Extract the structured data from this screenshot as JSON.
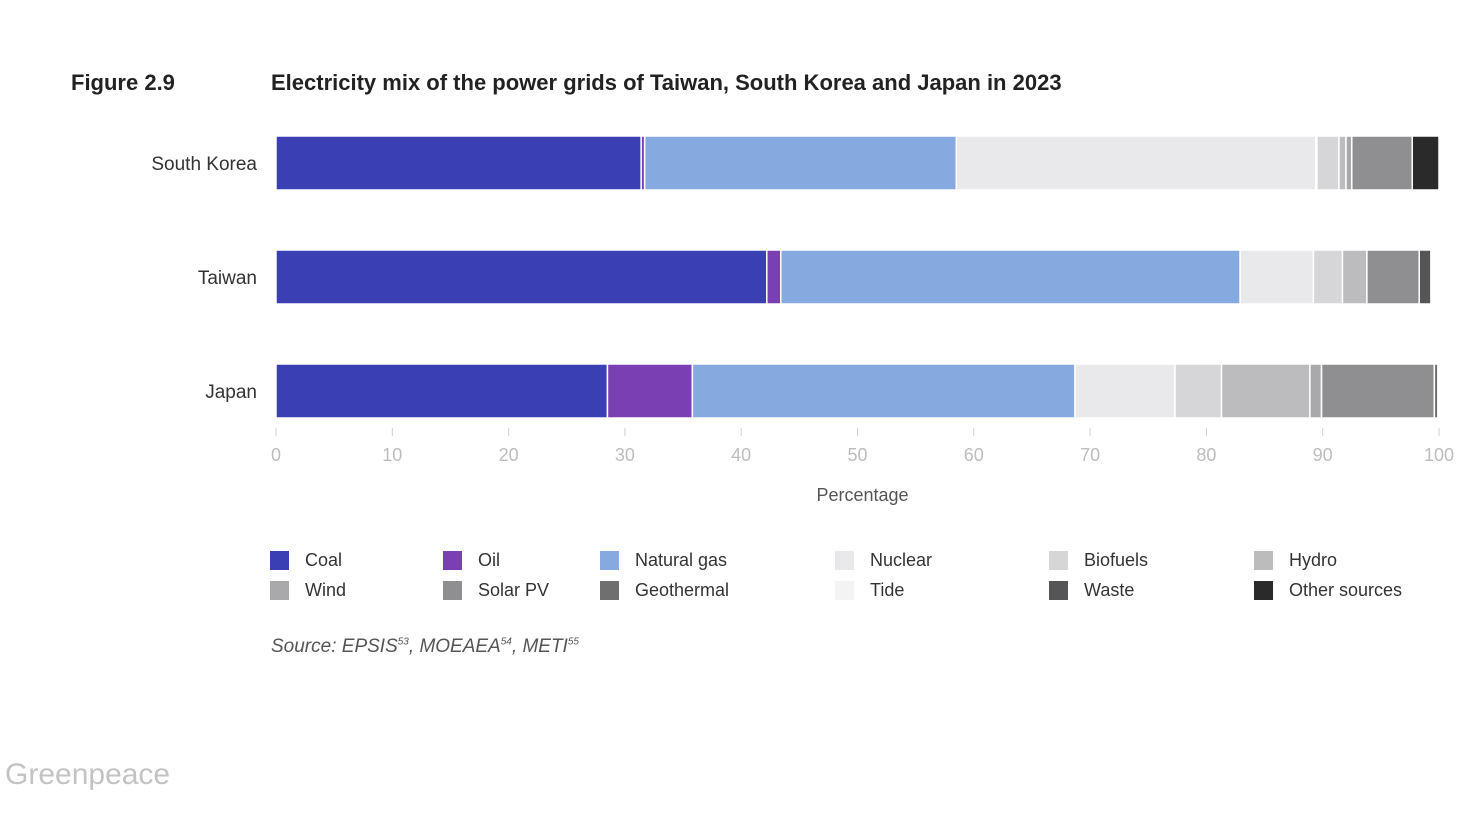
{
  "figure": {
    "label": "Figure 2.9",
    "title": "Electricity mix of the power grids of Taiwan, South Korea and Japan in 2023"
  },
  "chart_data": {
    "type": "bar",
    "orientation": "horizontal",
    "stacked": true,
    "categories": [
      "South Korea",
      "Taiwan",
      "Japan"
    ],
    "xlabel": "Percentage",
    "xlim": [
      0,
      100
    ],
    "xticks": [
      0,
      10,
      20,
      30,
      40,
      50,
      60,
      70,
      80,
      90,
      100
    ],
    "grid": false,
    "legend_position": "bottom",
    "series": [
      {
        "name": "Coal",
        "color": "#3a3fb3",
        "values": [
          31.4,
          42.2,
          28.5
        ]
      },
      {
        "name": "Oil",
        "color": "#7a3fb3",
        "values": [
          0.3,
          1.2,
          7.3
        ]
      },
      {
        "name": "Natural gas",
        "color": "#86a9e0",
        "values": [
          26.8,
          39.5,
          32.9
        ]
      },
      {
        "name": "Nuclear",
        "color": "#e9e9eb",
        "values": [
          30.9,
          6.3,
          8.6
        ]
      },
      {
        "name": "Tide",
        "color": "#f3f3f4",
        "values": [
          0.1,
          0.0,
          0.0
        ]
      },
      {
        "name": "Biofuels",
        "color": "#d6d6d8",
        "values": [
          1.9,
          2.5,
          4.0
        ]
      },
      {
        "name": "Hydro",
        "color": "#bcbcbe",
        "values": [
          0.6,
          2.1,
          7.6
        ]
      },
      {
        "name": "Wind",
        "color": "#a9a9ab",
        "values": [
          0.5,
          0.0,
          1.0
        ]
      },
      {
        "name": "Solar PV",
        "color": "#8f8f91",
        "values": [
          5.2,
          4.5,
          9.7
        ]
      },
      {
        "name": "Geothermal",
        "color": "#6f6f71",
        "values": [
          0.0,
          0.0,
          0.3
        ]
      },
      {
        "name": "Waste",
        "color": "#555557",
        "values": [
          0.0,
          1.0,
          0.0
        ]
      },
      {
        "name": "Other sources",
        "color": "#2a2a2a",
        "values": [
          2.3,
          0.0,
          0.0
        ]
      }
    ]
  },
  "legend": [
    {
      "name": "Coal",
      "color": "#3a3fb3"
    },
    {
      "name": "Oil",
      "color": "#7a3fb3"
    },
    {
      "name": "Natural gas",
      "color": "#86a9e0"
    },
    {
      "name": "Nuclear",
      "color": "#e9e9eb"
    },
    {
      "name": "Biofuels",
      "color": "#d6d6d8"
    },
    {
      "name": "Hydro",
      "color": "#bcbcbe"
    },
    {
      "name": "Wind",
      "color": "#a9a9ab"
    },
    {
      "name": "Solar PV",
      "color": "#8f8f91"
    },
    {
      "name": "Geothermal",
      "color": "#6f6f71"
    },
    {
      "name": "Tide",
      "color": "#f3f3f4"
    },
    {
      "name": "Waste",
      "color": "#555557"
    },
    {
      "name": "Other sources",
      "color": "#2a2a2a"
    }
  ],
  "source": {
    "prefix": "Source: ",
    "items": [
      {
        "name": "EPSIS",
        "ref": "53"
      },
      {
        "name": "MOEAEA",
        "ref": "54"
      },
      {
        "name": "METI",
        "ref": "55"
      }
    ]
  },
  "watermark": "Greenpeace"
}
